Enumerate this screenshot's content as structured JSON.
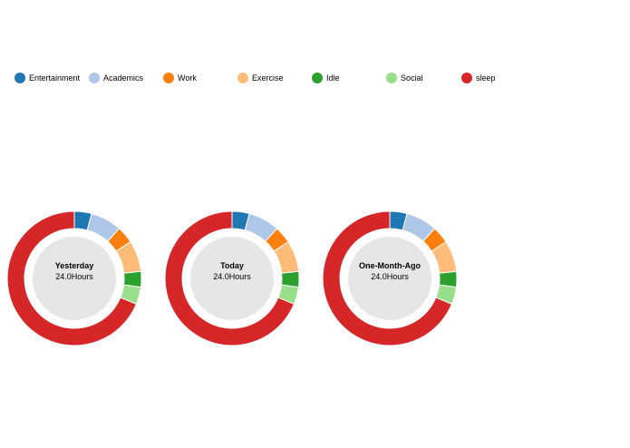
{
  "legend": [
    {
      "label": "Entertainment",
      "color": "#1f77b4"
    },
    {
      "label": "Academics",
      "color": "#aec7e8"
    },
    {
      "label": "Work",
      "color": "#ff7f0e"
    },
    {
      "label": "Exercise",
      "color": "#ffbb78"
    },
    {
      "label": "Idle",
      "color": "#2ca02c"
    },
    {
      "label": "Social",
      "color": "#98df8a"
    },
    {
      "label": "sleep",
      "color": "#d62728"
    }
  ],
  "chart_data": [
    {
      "type": "pie",
      "title": "Yesterday",
      "total_label": "24.0Hours",
      "categories": [
        "Entertainment",
        "Academics",
        "Work",
        "Exercise",
        "Idle",
        "Social",
        "sleep"
      ],
      "values": [
        1.0,
        1.8,
        1.0,
        1.8,
        0.9,
        1.0,
        16.5
      ],
      "colors": [
        "#1f77b4",
        "#aec7e8",
        "#ff7f0e",
        "#ffbb78",
        "#2ca02c",
        "#98df8a",
        "#d62728"
      ]
    },
    {
      "type": "pie",
      "title": "Today",
      "total_label": "24.0Hours",
      "categories": [
        "Entertainment",
        "Academics",
        "Work",
        "Exercise",
        "Idle",
        "Social",
        "sleep"
      ],
      "values": [
        1.0,
        1.8,
        1.0,
        1.8,
        0.9,
        1.0,
        16.5
      ],
      "colors": [
        "#1f77b4",
        "#aec7e8",
        "#ff7f0e",
        "#ffbb78",
        "#2ca02c",
        "#98df8a",
        "#d62728"
      ]
    },
    {
      "type": "pie",
      "title": "One-Month-Ago",
      "total_label": "24.0Hours",
      "categories": [
        "Entertainment",
        "Academics",
        "Work",
        "Exercise",
        "Idle",
        "Social",
        "sleep"
      ],
      "values": [
        1.0,
        1.8,
        1.0,
        1.8,
        0.9,
        1.0,
        16.5
      ],
      "colors": [
        "#1f77b4",
        "#aec7e8",
        "#ff7f0e",
        "#ffbb78",
        "#2ca02c",
        "#98df8a",
        "#d62728"
      ]
    }
  ]
}
